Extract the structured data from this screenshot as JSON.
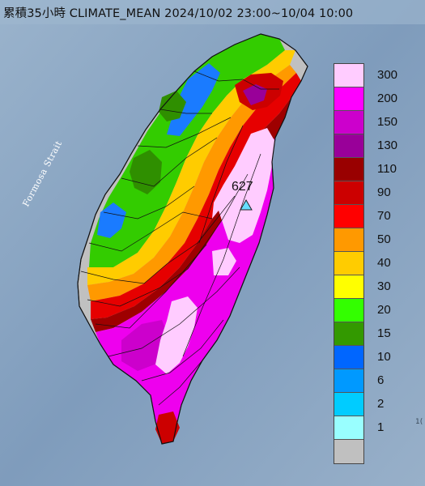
{
  "map": {
    "title": "累積35小時 CLIMATE_MEAN 2024/10/02 23:00~10/04 10:00",
    "strait_label": "Formosa Strait",
    "max_value": "627",
    "corner_text": "1("
  },
  "legend": {
    "items": [
      {
        "label": "300",
        "color": "#ffccff"
      },
      {
        "label": "200",
        "color": "#ff00ff"
      },
      {
        "label": "150",
        "color": "#cc00cc"
      },
      {
        "label": "130",
        "color": "#990099"
      },
      {
        "label": "110",
        "color": "#990000"
      },
      {
        "label": "90",
        "color": "#cc0000"
      },
      {
        "label": "70",
        "color": "#ff0000"
      },
      {
        "label": "50",
        "color": "#ff9900"
      },
      {
        "label": "40",
        "color": "#ffcc00"
      },
      {
        "label": "30",
        "color": "#ffff00"
      },
      {
        "label": "20",
        "color": "#33ff00"
      },
      {
        "label": "15",
        "color": "#339900"
      },
      {
        "label": "10",
        "color": "#0066ff"
      },
      {
        "label": "6",
        "color": "#0099ff"
      },
      {
        "label": "2",
        "color": "#00ccff"
      },
      {
        "label": "1",
        "color": "#99ffff"
      },
      {
        "label": "",
        "color": "#c0c0c0"
      }
    ]
  }
}
